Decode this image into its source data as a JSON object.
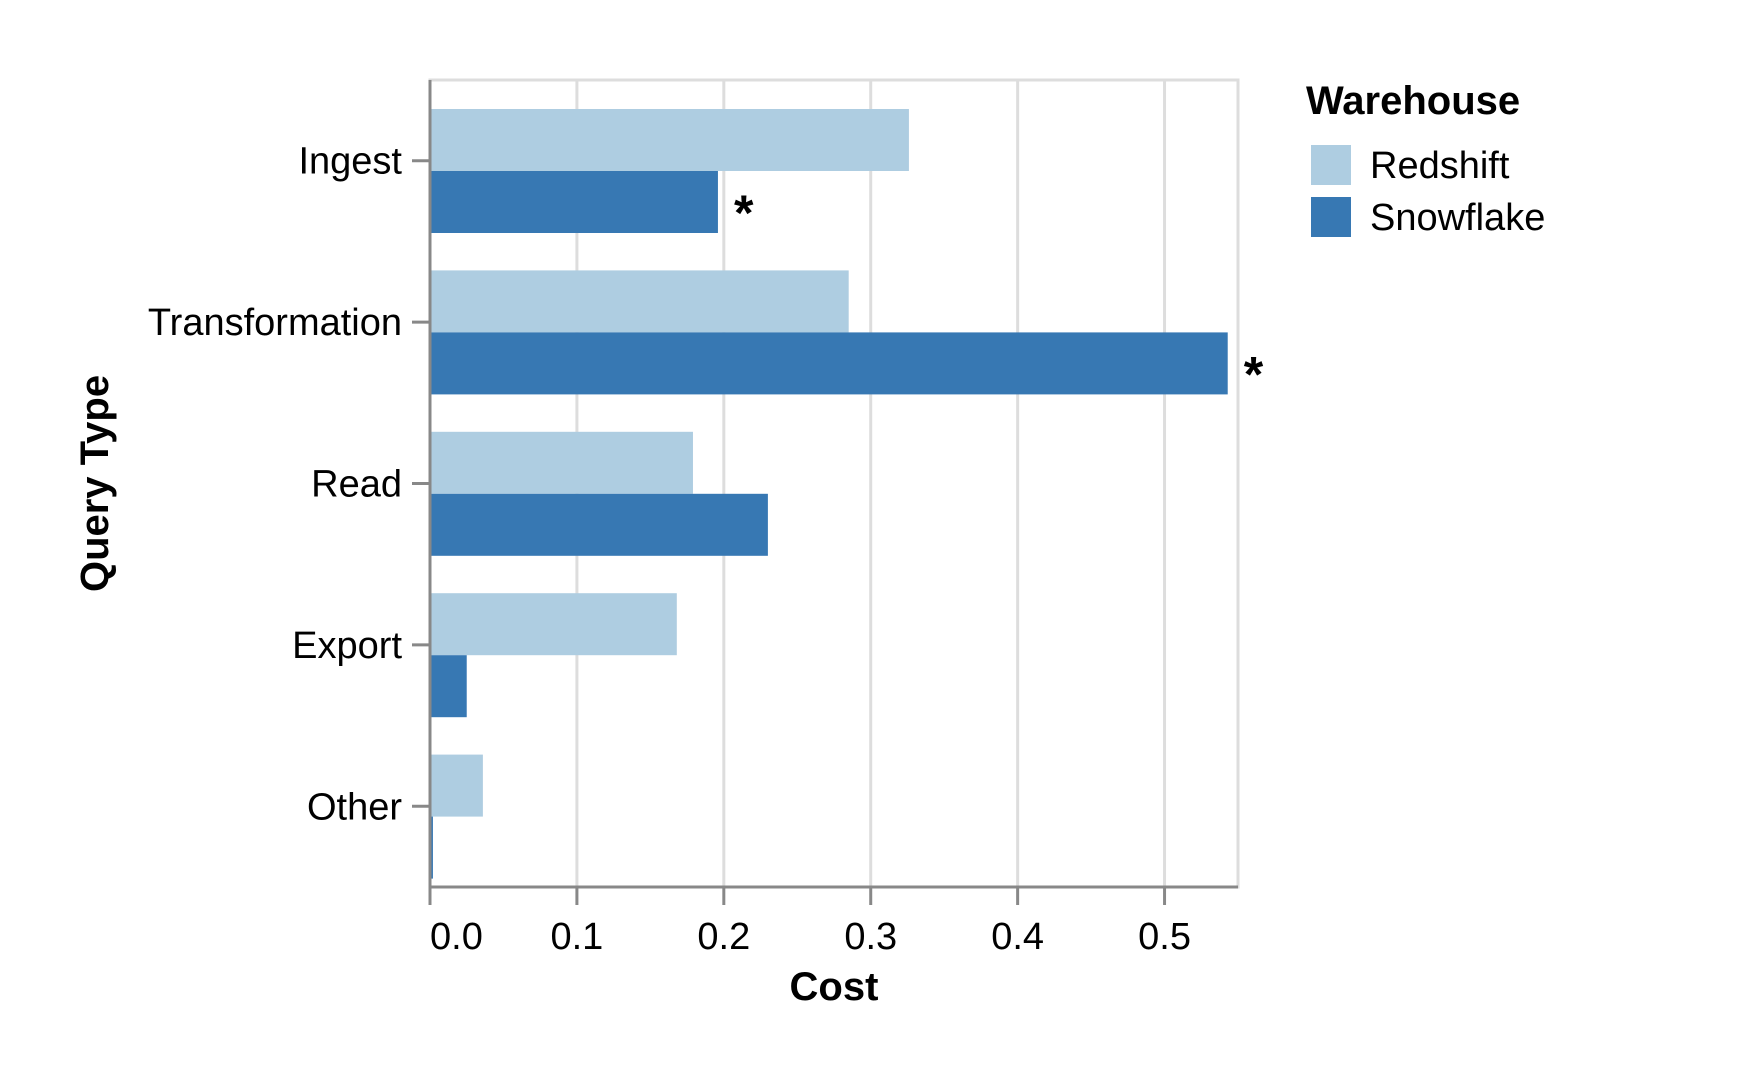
{
  "chart_data": {
    "type": "bar",
    "orientation": "horizontal",
    "categories": [
      "Ingest",
      "Transformation",
      "Read",
      "Export",
      "Other"
    ],
    "series": [
      {
        "name": "Redshift",
        "color": "#aecde1",
        "values": [
          0.326,
          0.285,
          0.179,
          0.168,
          0.036
        ]
      },
      {
        "name": "Snowflake",
        "color": "#3778b3",
        "values": [
          0.196,
          0.543,
          0.23,
          0.025,
          0.002
        ]
      }
    ],
    "annotations": [
      {
        "category": "Ingest",
        "series": "Snowflake",
        "text": "*"
      },
      {
        "category": "Transformation",
        "series": "Snowflake",
        "text": "*"
      }
    ],
    "xlabel": "Cost",
    "ylabel": "Query Type",
    "xlim": [
      0,
      0.55
    ],
    "xticks": [
      0,
      0.1,
      0.2,
      0.3,
      0.4,
      0.5
    ],
    "xtick_labels": [
      "0.0",
      "0.1",
      "0.2",
      "0.3",
      "0.4",
      "0.5"
    ],
    "grid": true,
    "legend": {
      "title": "Warehouse",
      "placement": "right"
    }
  }
}
